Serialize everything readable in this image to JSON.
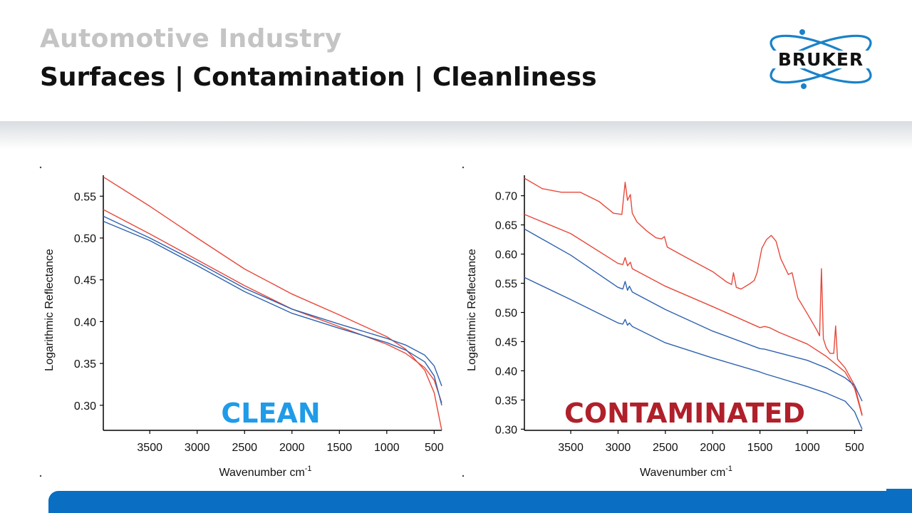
{
  "slide": {
    "pre_title": "Automotive Industry",
    "title": "Surfaces | Contamination | Cleanliness",
    "logo_text": "BRUKER",
    "colors": {
      "red": "#e8483a",
      "blue": "#2f62b0",
      "clean": "#1f9be8",
      "contaminated": "#b0202a",
      "footer": "#0a6ec2"
    }
  },
  "chart_data": [
    {
      "type": "line",
      "label": "CLEAN",
      "xlabel": "Wavenumber cm-1",
      "ylabel": "Logarithmic Reflectance",
      "xlim": [
        3990,
        420
      ],
      "ylim": [
        0.27,
        0.575
      ],
      "xticks": [
        "3500",
        "3000",
        "2500",
        "2000",
        "1500",
        "1000",
        "500"
      ],
      "yticks": [
        "0.30",
        "0.35",
        "0.40",
        "0.45",
        "0.50",
        "0.55"
      ],
      "series": [
        {
          "color": "red",
          "x": [
            3990,
            3500,
            3000,
            2500,
            2000,
            1500,
            1000,
            800,
            600,
            500,
            420
          ],
          "y": [
            0.573,
            0.538,
            0.5,
            0.463,
            0.433,
            0.408,
            0.382,
            0.367,
            0.342,
            0.315,
            0.27
          ]
        },
        {
          "color": "red",
          "x": [
            3990,
            3500,
            3000,
            2500,
            2000,
            1500,
            1000,
            800,
            600,
            500,
            420
          ],
          "y": [
            0.534,
            0.505,
            0.474,
            0.443,
            0.415,
            0.394,
            0.373,
            0.362,
            0.345,
            0.33,
            0.303
          ]
        },
        {
          "color": "blue",
          "x": [
            3990,
            3500,
            3000,
            2500,
            2000,
            1500,
            1000,
            800,
            600,
            500,
            420
          ],
          "y": [
            0.526,
            0.5,
            0.471,
            0.44,
            0.415,
            0.397,
            0.38,
            0.372,
            0.36,
            0.347,
            0.323
          ]
        },
        {
          "color": "blue",
          "x": [
            3990,
            3500,
            3000,
            2500,
            2000,
            1500,
            1000,
            800,
            600,
            500,
            420
          ],
          "y": [
            0.52,
            0.497,
            0.467,
            0.436,
            0.41,
            0.392,
            0.375,
            0.366,
            0.352,
            0.335,
            0.3
          ]
        }
      ]
    },
    {
      "type": "line",
      "label": "CONTAMINATED",
      "xlabel": "Wavenumber cm-1",
      "ylabel": "Logarithmic Reflectance",
      "xlim": [
        3990,
        420
      ],
      "ylim": [
        0.298,
        0.735
      ],
      "xticks": [
        "3500",
        "3000",
        "2500",
        "2000",
        "1500",
        "1000",
        "500"
      ],
      "yticks": [
        "0.30",
        "0.35",
        "0.40",
        "0.45",
        "0.50",
        "0.55",
        "0.60",
        "0.65",
        "0.70"
      ],
      "series": [
        {
          "color": "red",
          "x": [
            3990,
            3800,
            3600,
            3400,
            3200,
            3050,
            2960,
            2925,
            2900,
            2870,
            2850,
            2800,
            2700,
            2600,
            2540,
            2510,
            2480,
            2300,
            2000,
            1850,
            1800,
            1780,
            1750,
            1700,
            1600,
            1560,
            1530,
            1480,
            1430,
            1380,
            1330,
            1280,
            1200,
            1160,
            1100,
            1000,
            900,
            870,
            850,
            830,
            800,
            760,
            720,
            700,
            680,
            600,
            500,
            420
          ],
          "y": [
            0.73,
            0.712,
            0.706,
            0.706,
            0.69,
            0.67,
            0.668,
            0.723,
            0.692,
            0.702,
            0.67,
            0.655,
            0.64,
            0.628,
            0.626,
            0.63,
            0.612,
            0.596,
            0.57,
            0.552,
            0.548,
            0.568,
            0.543,
            0.54,
            0.55,
            0.555,
            0.568,
            0.61,
            0.625,
            0.632,
            0.622,
            0.592,
            0.565,
            0.568,
            0.525,
            0.498,
            0.47,
            0.46,
            0.575,
            0.455,
            0.44,
            0.43,
            0.43,
            0.477,
            0.42,
            0.405,
            0.375,
            0.325
          ]
        },
        {
          "color": "red",
          "x": [
            3990,
            3500,
            3000,
            2950,
            2925,
            2900,
            2870,
            2850,
            2500,
            2000,
            1500,
            1450,
            1400,
            1300,
            1000,
            800,
            600,
            500,
            420
          ],
          "y": [
            0.668,
            0.635,
            0.584,
            0.582,
            0.594,
            0.58,
            0.586,
            0.575,
            0.545,
            0.51,
            0.474,
            0.476,
            0.474,
            0.466,
            0.446,
            0.425,
            0.398,
            0.37,
            0.323
          ]
        },
        {
          "color": "blue",
          "x": [
            3990,
            3500,
            3000,
            2950,
            2925,
            2900,
            2880,
            2850,
            2500,
            2000,
            1500,
            1450,
            1400,
            1000,
            800,
            600,
            500,
            420
          ],
          "y": [
            0.643,
            0.598,
            0.543,
            0.54,
            0.553,
            0.538,
            0.545,
            0.535,
            0.505,
            0.468,
            0.438,
            0.437,
            0.435,
            0.418,
            0.405,
            0.388,
            0.375,
            0.348
          ]
        },
        {
          "color": "blue",
          "x": [
            3990,
            3500,
            3000,
            2950,
            2925,
            2900,
            2880,
            2850,
            2500,
            2000,
            1500,
            1450,
            1000,
            800,
            600,
            500,
            420
          ],
          "y": [
            0.56,
            0.522,
            0.482,
            0.48,
            0.488,
            0.478,
            0.482,
            0.476,
            0.448,
            0.422,
            0.398,
            0.395,
            0.373,
            0.362,
            0.348,
            0.33,
            0.3
          ]
        }
      ]
    }
  ]
}
